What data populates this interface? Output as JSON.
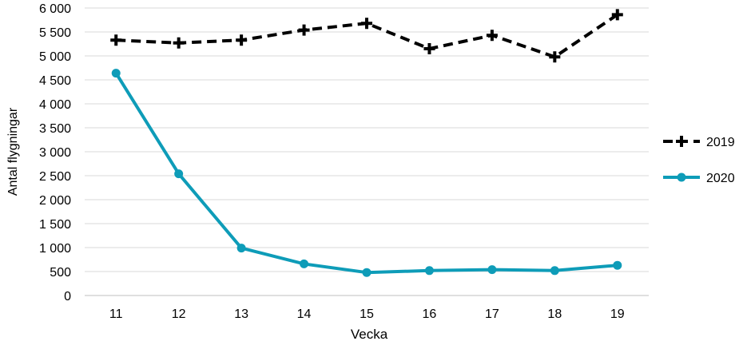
{
  "chart_data": {
    "type": "line",
    "title": "",
    "xlabel": "Vecka",
    "ylabel": "Antal flygningar",
    "categories": [
      "11",
      "12",
      "13",
      "14",
      "15",
      "16",
      "17",
      "18",
      "19"
    ],
    "ylim": [
      0,
      6000
    ],
    "yticks": [
      0,
      500,
      1000,
      1500,
      2000,
      2500,
      3000,
      3500,
      4000,
      4500,
      5000,
      5500,
      6000
    ],
    "ytick_labels": [
      "0",
      "500",
      "1 000",
      "1 500",
      "2 000",
      "2 500",
      "3 000",
      "3 500",
      "4 000",
      "4 500",
      "5 000",
      "5 500",
      "6 000"
    ],
    "grid": true,
    "legend_position": "right",
    "series": [
      {
        "name": "2019",
        "color": "#000000",
        "style": "dashed",
        "marker": "plus",
        "values": [
          5330,
          5270,
          5330,
          5540,
          5680,
          5150,
          5430,
          4980,
          5860
        ]
      },
      {
        "name": "2020",
        "color": "#0E9CB8",
        "style": "solid",
        "marker": "circle",
        "values": [
          4640,
          2540,
          990,
          660,
          480,
          520,
          540,
          520,
          630
        ]
      }
    ]
  }
}
